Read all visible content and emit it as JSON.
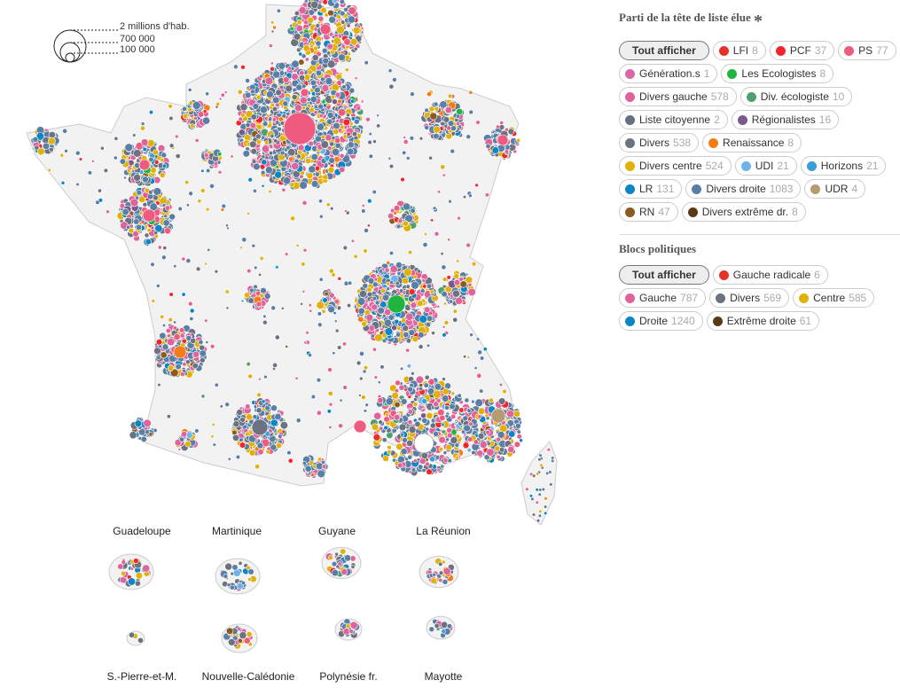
{
  "size_legend": {
    "labels": [
      "2 millions d'hab.",
      "700 000",
      "100 000"
    ]
  },
  "party_filter": {
    "title": "Parti de la tête de liste élue",
    "asterisk": "*",
    "all_label": "Tout afficher",
    "items": [
      {
        "label": "LFI",
        "count": "8",
        "color": "#e5322d"
      },
      {
        "label": "PCF",
        "count": "37",
        "color": "#f0262c"
      },
      {
        "label": "PS",
        "count": "77",
        "color": "#ee5a80"
      },
      {
        "label": "Génération.s",
        "count": "1",
        "color": "#d966a6"
      },
      {
        "label": "Les Ecologistes",
        "count": "8",
        "color": "#1fb53e"
      },
      {
        "label": "Divers gauche",
        "count": "578",
        "color": "#e0649c"
      },
      {
        "label": "Div. écologiste",
        "count": "10",
        "color": "#4fa071"
      },
      {
        "label": "Liste citoyenne",
        "count": "2",
        "color": "#667080"
      },
      {
        "label": "Régionalistes",
        "count": "16",
        "color": "#7a5a8c"
      },
      {
        "label": "Divers",
        "count": "538",
        "color": "#6b7383"
      },
      {
        "label": "Renaissance",
        "count": "8",
        "color": "#f57c14"
      },
      {
        "label": "Divers centre",
        "count": "524",
        "color": "#e0b10a"
      },
      {
        "label": "UDI",
        "count": "21",
        "color": "#6cb4ea"
      },
      {
        "label": "Horizons",
        "count": "21",
        "color": "#389fd8"
      },
      {
        "label": "LR",
        "count": "131",
        "color": "#0a86c4"
      },
      {
        "label": "Divers droite",
        "count": "1083",
        "color": "#5a7fa6"
      },
      {
        "label": "UDR",
        "count": "4",
        "color": "#b59a72"
      },
      {
        "label": "RN",
        "count": "47",
        "color": "#8a5a20"
      },
      {
        "label": "Divers extrême dr.",
        "count": "8",
        "color": "#5a3a14"
      }
    ]
  },
  "bloc_filter": {
    "title": "Blocs politiques",
    "all_label": "Tout afficher",
    "items": [
      {
        "label": "Gauche radicale",
        "count": "6",
        "color": "#e5322d"
      },
      {
        "label": "Gauche",
        "count": "787",
        "color": "#e0649c"
      },
      {
        "label": "Divers",
        "count": "569",
        "color": "#6b7383"
      },
      {
        "label": "Centre",
        "count": "585",
        "color": "#e0b10a"
      },
      {
        "label": "Droite",
        "count": "1240",
        "color": "#0a86c4"
      },
      {
        "label": "Extrême droite",
        "count": "61",
        "color": "#5a3a14"
      }
    ]
  },
  "overseas": [
    "Guadeloupe",
    "Martinique",
    "Guyane",
    "La Réunion",
    "S.-Pierre-et-M.",
    "Nouvelle-Calédonie",
    "Polynésie fr.",
    "Mayotte"
  ]
}
